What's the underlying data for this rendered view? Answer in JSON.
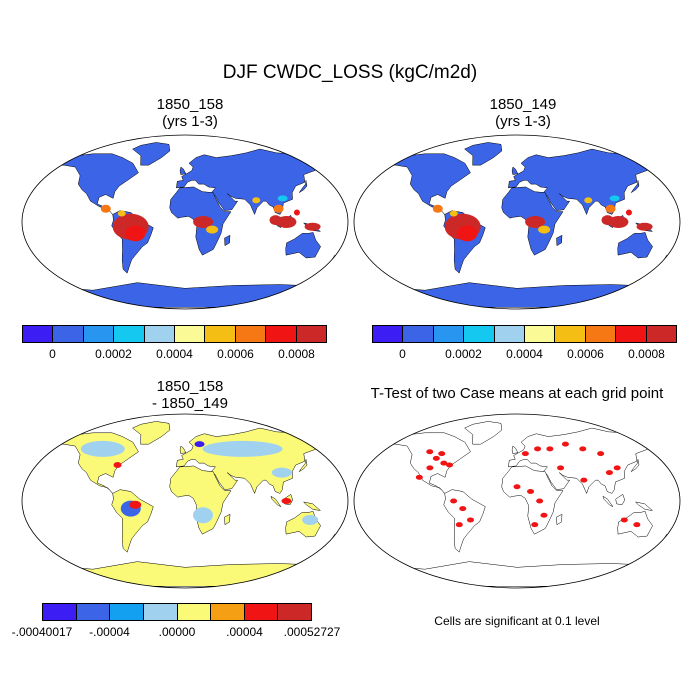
{
  "main_title": "DJF CWDC_LOSS (kgC/m2d)",
  "panels": [
    {
      "title_line1": "1850_158",
      "title_line2": "(yrs 1-3)"
    },
    {
      "title_line1": "1850_149",
      "title_line2": "(yrs 1-3)"
    },
    {
      "title_line1": "1850_158",
      "title_line2": "- 1850_149"
    },
    {
      "title_line1": "T-Test of two Case means at each grid point",
      "title_line2": ""
    }
  ],
  "colorbar_top": {
    "colors": [
      "#3c1ef5",
      "#3c64e6",
      "#2896f0",
      "#14c8f0",
      "#a0d2f0",
      "#fafa96",
      "#f5be14",
      "#f57814",
      "#f01414",
      "#cd2828"
    ],
    "labels": [
      "0",
      "0.0002",
      "0.0004",
      "0.0006",
      "0.0008"
    ]
  },
  "colorbar_diff": {
    "colors": [
      "#3c1ef5",
      "#3c64e6",
      "#14a0f0",
      "#a0d2f0",
      "#fafa78",
      "#f5a014",
      "#f01414",
      "#cd2828"
    ],
    "labels": [
      "-.00040017",
      "-.00004",
      ".00000",
      ".00004",
      ".00052727"
    ]
  },
  "ttest_note": "Cells are significant at 0.1 level",
  "map_colors": {
    "ocean": "#ffffff",
    "land_low": "#3c64e6",
    "tropics_high": "#cd2828",
    "diff_pos": "#fafa78",
    "diff_neg": "#a0d2f0",
    "significant": "#f01414",
    "coast": "#000000"
  }
}
